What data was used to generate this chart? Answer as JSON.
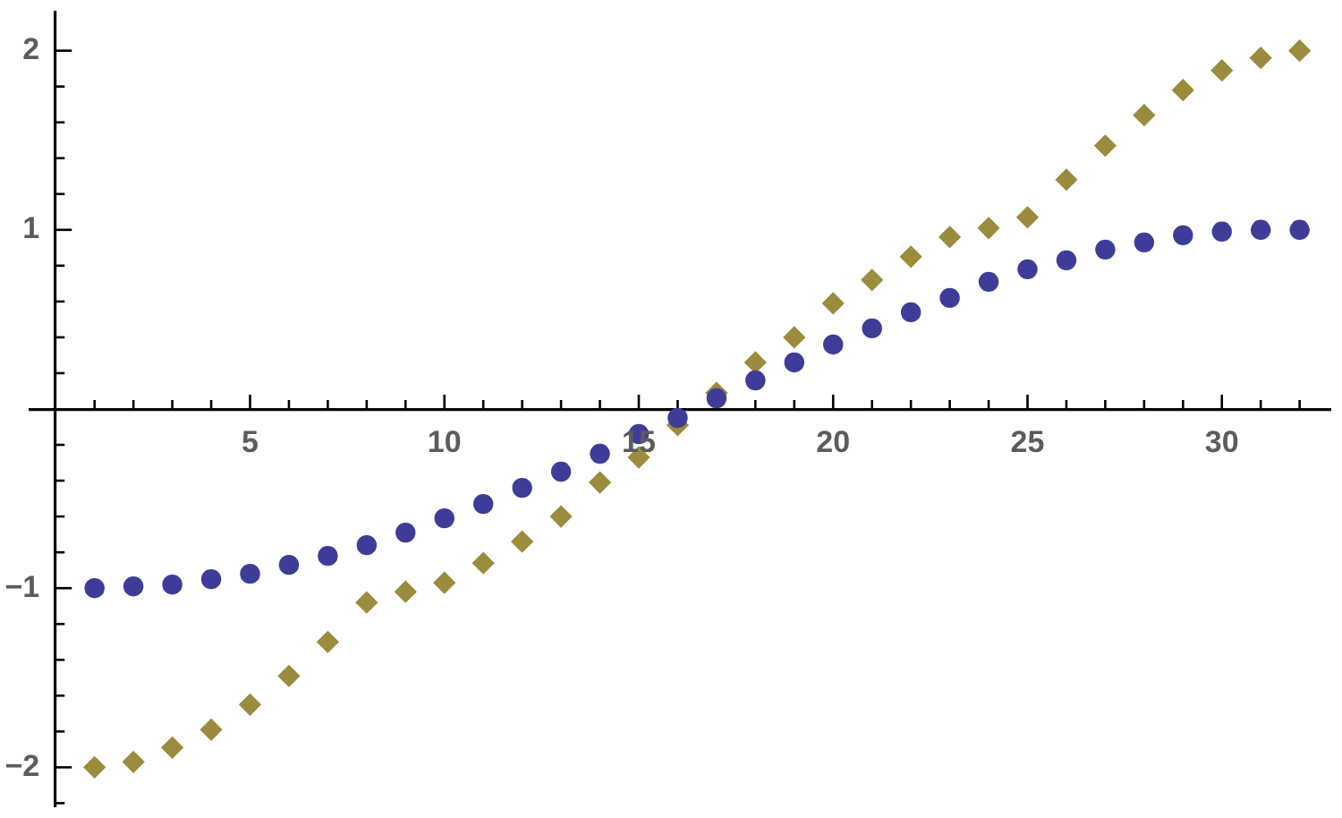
{
  "chart_data": {
    "type": "scatter",
    "x": [
      1,
      2,
      3,
      4,
      5,
      6,
      7,
      8,
      9,
      10,
      11,
      12,
      13,
      14,
      15,
      16,
      17,
      18,
      19,
      20,
      21,
      22,
      23,
      24,
      25,
      26,
      27,
      28,
      29,
      30,
      31,
      32
    ],
    "series": [
      {
        "color": "#3d3d99",
        "marker": "circle",
        "values": [
          -1.0,
          -0.99,
          -0.98,
          -0.95,
          -0.92,
          -0.87,
          -0.82,
          -0.76,
          -0.69,
          -0.61,
          -0.53,
          -0.44,
          -0.35,
          -0.25,
          -0.14,
          -0.05,
          0.06,
          0.16,
          0.26,
          0.36,
          0.45,
          0.54,
          0.62,
          0.71,
          0.78,
          0.83,
          0.89,
          0.93,
          0.97,
          0.99,
          1.0,
          1.0
        ]
      },
      {
        "color": "#9b8b3d",
        "marker": "diamond",
        "values": [
          -2.0,
          -1.97,
          -1.89,
          -1.79,
          -1.65,
          -1.49,
          -1.3,
          -1.08,
          -1.02,
          -0.97,
          -0.86,
          -0.74,
          -0.6,
          -0.41,
          -0.27,
          -0.09,
          0.09,
          0.26,
          0.4,
          0.59,
          0.72,
          0.85,
          0.96,
          1.01,
          1.07,
          1.28,
          1.47,
          1.64,
          1.78,
          1.89,
          1.96,
          2.0
        ]
      }
    ],
    "xlim": [
      -0.65,
      32.8
    ],
    "ylim": [
      -2.22,
      2.22
    ],
    "xticks": [
      {
        "value": 1,
        "label": null
      },
      {
        "value": 2,
        "label": null
      },
      {
        "value": 3,
        "label": null
      },
      {
        "value": 4,
        "label": null
      },
      5,
      {
        "value": 6,
        "label": null
      },
      {
        "value": 7,
        "label": null
      },
      {
        "value": 8,
        "label": null
      },
      {
        "value": 9,
        "label": null
      },
      10,
      {
        "value": 11,
        "label": null
      },
      {
        "value": 12,
        "label": null
      },
      {
        "value": 13,
        "label": null
      },
      {
        "value": 14,
        "label": null
      },
      15,
      {
        "value": 16,
        "label": null
      },
      {
        "value": 17,
        "label": null
      },
      {
        "value": 18,
        "label": null
      },
      {
        "value": 19,
        "label": null
      },
      20,
      {
        "value": 21,
        "label": null
      },
      {
        "value": 22,
        "label": null
      },
      {
        "value": 23,
        "label": null
      },
      {
        "value": 24,
        "label": null
      },
      25,
      {
        "value": 26,
        "label": null
      },
      {
        "value": 27,
        "label": null
      },
      {
        "value": 28,
        "label": null
      },
      {
        "value": 29,
        "label": null
      },
      30,
      {
        "value": 31,
        "label": null
      },
      {
        "value": 32,
        "label": null
      }
    ],
    "yticks": [
      {
        "value": -2.2,
        "label": null
      },
      {
        "value": -2,
        "label": "−2"
      },
      {
        "value": -1.8,
        "label": null
      },
      {
        "value": -1.6,
        "label": null
      },
      {
        "value": -1.4,
        "label": null
      },
      {
        "value": -1.2,
        "label": null
      },
      {
        "value": -1,
        "label": "−1"
      },
      {
        "value": -0.8,
        "label": null
      },
      {
        "value": -0.6,
        "label": null
      },
      {
        "value": -0.4,
        "label": null
      },
      {
        "value": -0.2,
        "label": null
      },
      {
        "value": 0.2,
        "label": null
      },
      {
        "value": 0.4,
        "label": null
      },
      {
        "value": 0.6,
        "label": null
      },
      {
        "value": 0.8,
        "label": null
      },
      1,
      {
        "value": 1.2,
        "label": null
      },
      {
        "value": 1.4,
        "label": null
      },
      {
        "value": 1.6,
        "label": null
      },
      {
        "value": 1.8,
        "label": null
      },
      2
    ],
    "grid": false,
    "legend": false
  }
}
